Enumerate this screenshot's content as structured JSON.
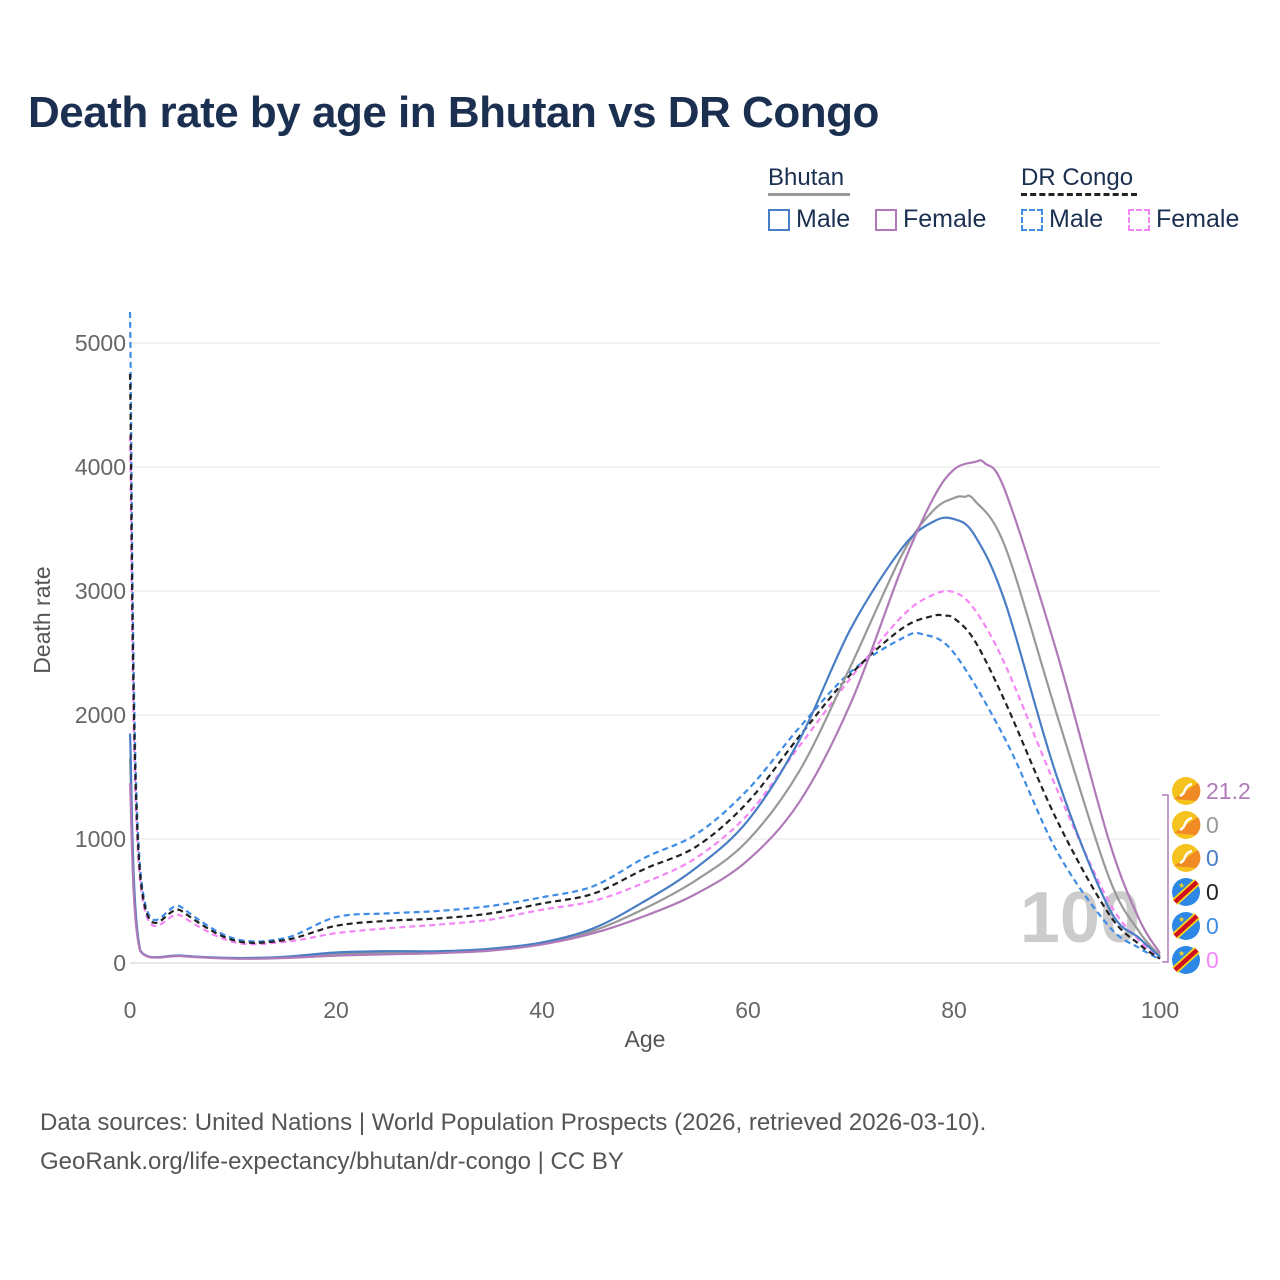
{
  "title": "Death rate by age in Bhutan vs DR Congo",
  "legend": {
    "bhutan_label": "Bhutan",
    "drc_label": "DR Congo",
    "male_label": "Male",
    "female_label": "Female"
  },
  "colors": {
    "bhutan_male": "#4a7ec4",
    "bhutan_female": "#b07ab8",
    "bhutan_total": "#999999",
    "drc_male": "#3f8ce6",
    "drc_female": "#f586f5",
    "drc_total": "#222222",
    "title": "#1b3050"
  },
  "source_line1": "Data sources: United Nations | World Population Prospects (2026, retrieved 2026-03-10).",
  "source_line2": "GeoRank.org/life-expectancy/bhutan/dr-congo | CC BY",
  "chart_data": {
    "type": "line",
    "xlabel": "Age",
    "ylabel": "Death rate",
    "xlim": [
      0,
      100
    ],
    "ylim": [
      0,
      5200
    ],
    "x_ticks": [
      0,
      20,
      40,
      60,
      80,
      100
    ],
    "y_ticks": [
      0,
      1000,
      2000,
      3000,
      4000,
      5000
    ],
    "x_tick_labels": [
      "0",
      "20",
      "40",
      "60",
      "80",
      "100"
    ],
    "y_tick_labels": [
      "0",
      "1000",
      "2000",
      "3000",
      "4000",
      "5000"
    ],
    "grid": true,
    "watermark": "100",
    "end_labels": [
      {
        "series": "Bhutan Female",
        "value": "21.2",
        "flag": "bhutan-flag-icon"
      },
      {
        "series": "Bhutan Total",
        "value": "0",
        "flag": "bhutan-flag-icon"
      },
      {
        "series": "Bhutan Male",
        "value": "0",
        "flag": "bhutan-flag-icon"
      },
      {
        "series": "DR Congo Total",
        "value": "0",
        "flag": "drc-flag-icon"
      },
      {
        "series": "DR Congo Male",
        "value": "0",
        "flag": "drc-flag-icon"
      },
      {
        "series": "DR Congo Female",
        "value": "0",
        "flag": "drc-flag-icon"
      }
    ],
    "series": [
      {
        "name": "Bhutan Male",
        "color": "#4a7ec4",
        "dash": false,
        "x": [
          0,
          1,
          5,
          10,
          15,
          20,
          25,
          30,
          35,
          40,
          45,
          50,
          55,
          60,
          65,
          70,
          75,
          78,
          80,
          82,
          85,
          90,
          95,
          98,
          100
        ],
        "y": [
          1850,
          100,
          60,
          40,
          50,
          85,
          95,
          95,
          115,
          165,
          280,
          500,
          770,
          1150,
          1800,
          2700,
          3350,
          3560,
          3580,
          3450,
          2900,
          1500,
          450,
          200,
          50
        ]
      },
      {
        "name": "Bhutan Female",
        "color": "#b07ab8",
        "dash": false,
        "x": [
          0,
          1,
          5,
          10,
          15,
          20,
          25,
          30,
          35,
          40,
          45,
          50,
          55,
          60,
          65,
          70,
          75,
          78,
          80,
          82,
          83,
          85,
          90,
          95,
          98,
          100
        ],
        "y": [
          1450,
          95,
          55,
          35,
          40,
          60,
          70,
          80,
          100,
          150,
          240,
          380,
          560,
          830,
          1300,
          2100,
          3200,
          3750,
          3980,
          4040,
          4030,
          3800,
          2500,
          1000,
          350,
          80
        ]
      },
      {
        "name": "Bhutan Total",
        "color": "#999999",
        "dash": false,
        "x": [
          0,
          1,
          5,
          10,
          15,
          20,
          25,
          30,
          35,
          40,
          45,
          50,
          55,
          60,
          65,
          70,
          75,
          78,
          80,
          81,
          82,
          85,
          90,
          95,
          98,
          100
        ],
        "y": [
          1650,
          100,
          58,
          38,
          45,
          72,
          82,
          88,
          108,
          158,
          260,
          440,
          670,
          990,
          1550,
          2400,
          3300,
          3650,
          3750,
          3760,
          3730,
          3350,
          2000,
          700,
          250,
          60
        ]
      },
      {
        "name": "DR Congo Male",
        "color": "#3f8ce6",
        "dash": true,
        "x": [
          0,
          1,
          5,
          10,
          15,
          20,
          25,
          30,
          35,
          40,
          45,
          50,
          55,
          60,
          65,
          70,
          75,
          77,
          80,
          85,
          90,
          95,
          98,
          100
        ],
        "y": [
          5250,
          750,
          450,
          200,
          200,
          370,
          400,
          420,
          460,
          530,
          620,
          850,
          1040,
          1400,
          1900,
          2350,
          2620,
          2650,
          2500,
          1800,
          900,
          300,
          120,
          30
        ]
      },
      {
        "name": "DR Congo Female",
        "color": "#f586f5",
        "dash": true,
        "x": [
          0,
          1,
          5,
          10,
          15,
          20,
          25,
          30,
          35,
          40,
          45,
          50,
          55,
          60,
          65,
          70,
          75,
          78,
          80,
          82,
          85,
          90,
          95,
          98,
          100
        ],
        "y": [
          4250,
          650,
          380,
          170,
          170,
          240,
          280,
          310,
          350,
          430,
          500,
          650,
          850,
          1200,
          1750,
          2300,
          2800,
          2970,
          2990,
          2850,
          2400,
          1400,
          500,
          180,
          40
        ]
      },
      {
        "name": "DR Congo Total",
        "color": "#222222",
        "dash": true,
        "x": [
          0,
          1,
          5,
          10,
          15,
          20,
          25,
          30,
          35,
          40,
          45,
          50,
          55,
          60,
          65,
          70,
          75,
          78,
          79,
          80,
          82,
          85,
          90,
          95,
          98,
          100
        ],
        "y": [
          4750,
          700,
          420,
          185,
          185,
          300,
          340,
          360,
          400,
          480,
          560,
          760,
          940,
          1300,
          1830,
          2330,
          2700,
          2800,
          2800,
          2780,
          2600,
          2100,
          1150,
          400,
          150,
          35
        ]
      }
    ]
  }
}
